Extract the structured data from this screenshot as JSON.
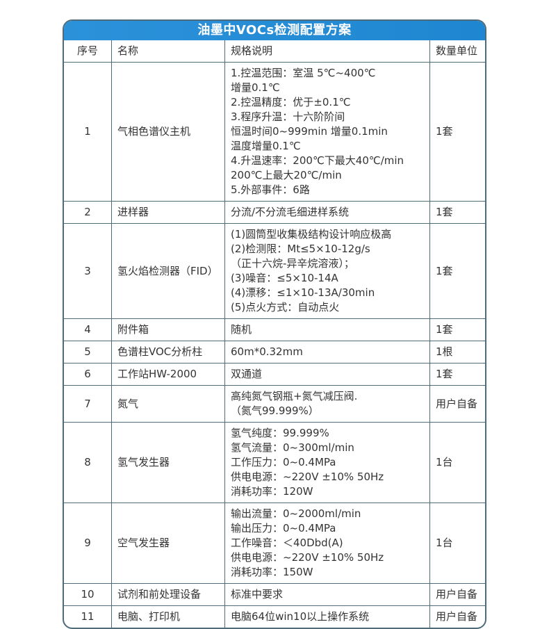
{
  "title": "油墨中VOCs检测配置方案",
  "colors": {
    "title_bar_blue": "#1f86d1",
    "title_bar_blue_light": "#2b92da",
    "border": "#4e6b7a",
    "text": "#333333",
    "title_text": "#ffffff"
  },
  "table": {
    "headers": [
      "序号",
      "名称",
      "规格说明",
      "数量单位"
    ],
    "rows": [
      {
        "no": "1",
        "name": "气相色谱仪主机",
        "spec": "1.控温范围：室温 5℃~400℃\n增量0.1℃\n2.控温精度：优于±0.1℃\n3.程序升温：十六阶阶间\n恒温时间0~999min 增量0.1min\n温度增量0.1℃\n4.升温速率：200℃下最大40℃/min\n200℃上最大20℃/min\n5.外部事件：6路",
        "qty": "1套"
      },
      {
        "no": "2",
        "name": "进样器",
        "spec": "分流/不分流毛细进样系统",
        "qty": "1套"
      },
      {
        "no": "3",
        "name": "氢火焰检测器（FID）",
        "spec": "(1)圆筒型收集极结构设计响应极高\n(2)检测限：Mt≤5×10-12g/s\n（正十六烷-异辛烷溶液）；\n(3)噪音：≤5×10-14A\n(4)漂移：≤1×10-13A/30min\n(5)点火方式：自动点火",
        "qty": "1套"
      },
      {
        "no": "4",
        "name": "附件箱",
        "spec": "随机",
        "qty": "1套"
      },
      {
        "no": "5",
        "name": "色谱柱VOC分析柱",
        "spec": "60m*0.32mm",
        "qty": "1根"
      },
      {
        "no": "6",
        "name": "工作站HW-2000",
        "spec": "双通道",
        "qty": "1套"
      },
      {
        "no": "7",
        "name": "氮气",
        "spec": "高纯氮气钢瓶+氮气减压阀.\n（氮气99.999%）",
        "qty": "用户自备"
      },
      {
        "no": "8",
        "name": "氢气发生器",
        "spec": "氢气纯度：99.999%\n氢气流量：0~300ml/min\n工作压力：0~0.4MPa\n供电电源：~220V ±10% 50Hz\n消耗功率：120W",
        "qty": "1台"
      },
      {
        "no": "9",
        "name": "空气发生器",
        "spec": "输出流量：0~2000ml/min\n输出压力：0~0.4MPa\n工作噪音：＜40Dbd(A)\n供电电源：~220V ±10% 50Hz\n消耗功率：150W",
        "qty": "1台"
      },
      {
        "no": "10",
        "name": "试剂和前处理设备",
        "spec": "标准中要求",
        "qty": "用户自备"
      },
      {
        "no": "11",
        "name": "电脑、打印机",
        "spec": "电脑64位win10以上操作系统",
        "qty": "用户自备"
      }
    ]
  }
}
